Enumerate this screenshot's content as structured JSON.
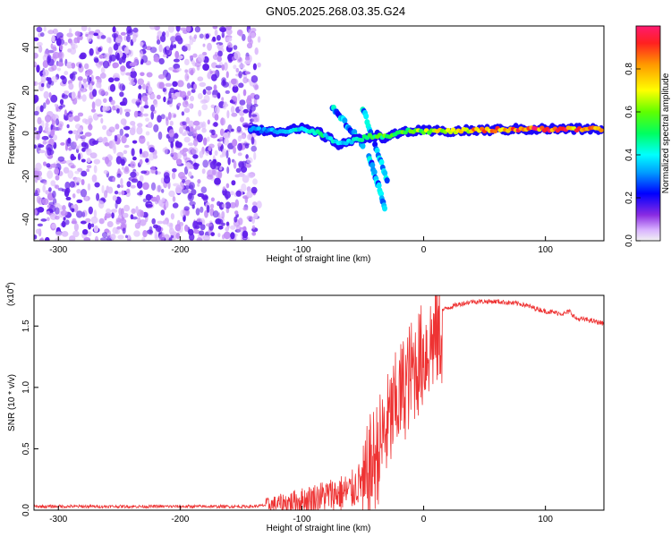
{
  "title": "GN05.2025.268.03.35.G24",
  "chart_data": [
    {
      "type": "heatmap",
      "xlabel": "Height of straight line (km)",
      "ylabel": "Frequency (Hz)",
      "xlim": [
        -320,
        148
      ],
      "ylim": [
        -50,
        50
      ],
      "xticks": [
        -300,
        -200,
        -100,
        0,
        100
      ],
      "yticks": [
        -40,
        -20,
        0,
        20,
        40
      ],
      "colorbar": {
        "label": "Normalized spectral amplitude",
        "range": [
          0,
          1
        ],
        "ticks": [
          "0.0",
          "0.2",
          "0.4",
          "0.6",
          "0.8"
        ]
      },
      "features": {
        "noise_region_x": [
          -320,
          -135
        ],
        "signal_track": [
          {
            "x": -142,
            "f": 2,
            "amp": 0.3
          },
          {
            "x": -120,
            "f": 1,
            "amp": 0.35
          },
          {
            "x": -100,
            "f": 2,
            "amp": 0.4
          },
          {
            "x": -85,
            "f": 0,
            "amp": 0.45
          },
          {
            "x": -70,
            "f": -5,
            "amp": 0.4
          },
          {
            "x": -55,
            "f": -3,
            "amp": 0.45
          },
          {
            "x": -40,
            "f": -1,
            "amp": 0.5
          },
          {
            "x": -30,
            "f": -2,
            "amp": 0.6
          },
          {
            "x": -15,
            "f": 1,
            "amp": 0.6
          },
          {
            "x": 0,
            "f": 1,
            "amp": 0.65
          },
          {
            "x": 20,
            "f": 1,
            "amp": 0.7
          },
          {
            "x": 50,
            "f": 1.5,
            "amp": 0.8
          },
          {
            "x": 80,
            "f": 2,
            "amp": 0.9
          },
          {
            "x": 110,
            "f": 2,
            "amp": 0.85
          },
          {
            "x": 148,
            "f": 2,
            "amp": 0.85
          }
        ],
        "secondary_branches": [
          {
            "from": [
              -75,
              12
            ],
            "to": [
              -50,
              -5
            ]
          },
          {
            "from": [
              -50,
              12
            ],
            "to": [
              -30,
              -22
            ]
          },
          {
            "from": [
              -45,
              -10
            ],
            "to": [
              -32,
              -34
            ]
          }
        ]
      }
    },
    {
      "type": "line",
      "xlabel": "Height of straight line (km)",
      "ylabel": "SNR (10 * v/v)",
      "scale_label": "(x10",
      "scale_exp": "4",
      "scale_close": ")",
      "xlim": [
        -320,
        148
      ],
      "ylim": [
        0,
        1.75
      ],
      "xticks": [
        -300,
        -200,
        -100,
        0,
        100
      ],
      "yticks": [
        "0.0",
        "0.5",
        "1.0",
        "1.5"
      ],
      "color": "#ee3333",
      "series": [
        {
          "name": "SNR",
          "x": [
            -320,
            -200,
            -140,
            -120,
            -100,
            -80,
            -60,
            -50,
            -45,
            -40,
            -30,
            -20,
            -10,
            0,
            10,
            20,
            30,
            40,
            60,
            80,
            100,
            115,
            120,
            125,
            135,
            148
          ],
          "y": [
            0.03,
            0.03,
            0.03,
            0.05,
            0.08,
            0.12,
            0.15,
            0.25,
            0.5,
            0.6,
            0.85,
            1.1,
            1.3,
            1.45,
            1.6,
            1.65,
            1.68,
            1.7,
            1.7,
            1.68,
            1.62,
            1.6,
            1.62,
            1.56,
            1.55,
            1.52
          ]
        }
      ]
    }
  ]
}
